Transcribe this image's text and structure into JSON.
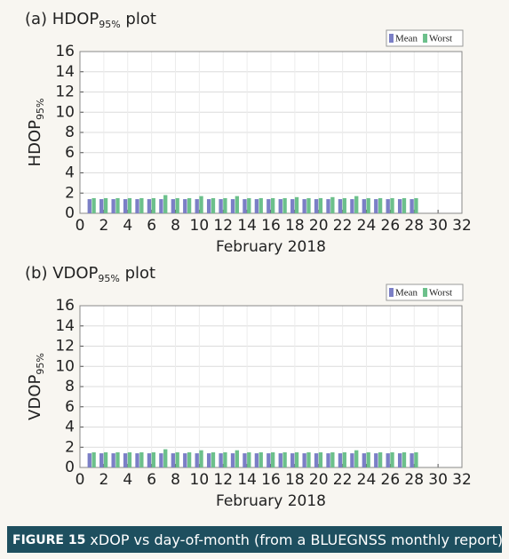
{
  "chart_data": [
    {
      "type": "bar",
      "title_main": "(a) HDOP",
      "title_sub": "95%",
      "title_end": " plot",
      "ylabel_main": "HDOP",
      "ylabel_sub": "95%",
      "xlabel": "February 2018",
      "x": [
        1,
        2,
        3,
        4,
        5,
        6,
        7,
        8,
        9,
        10,
        11,
        12,
        13,
        14,
        15,
        16,
        17,
        18,
        19,
        20,
        21,
        22,
        23,
        24,
        25,
        26,
        27,
        28
      ],
      "series": [
        {
          "name": "Mean",
          "color": "#7b7fc6",
          "values": [
            1.4,
            1.4,
            1.4,
            1.4,
            1.4,
            1.4,
            1.4,
            1.4,
            1.4,
            1.4,
            1.4,
            1.4,
            1.4,
            1.4,
            1.4,
            1.4,
            1.4,
            1.4,
            1.4,
            1.4,
            1.4,
            1.4,
            1.4,
            1.4,
            1.4,
            1.4,
            1.4,
            1.4
          ]
        },
        {
          "name": "Worst",
          "color": "#6cc08b",
          "values": [
            1.5,
            1.5,
            1.5,
            1.5,
            1.5,
            1.5,
            1.8,
            1.5,
            1.5,
            1.7,
            1.5,
            1.5,
            1.7,
            1.5,
            1.5,
            1.5,
            1.5,
            1.6,
            1.5,
            1.5,
            1.6,
            1.5,
            1.7,
            1.5,
            1.5,
            1.5,
            1.5,
            1.5
          ]
        }
      ],
      "xlim": [
        0,
        32
      ],
      "xticks": [
        0,
        2,
        4,
        6,
        8,
        10,
        12,
        14,
        16,
        18,
        20,
        22,
        24,
        26,
        28,
        30,
        32
      ],
      "ylim": [
        0,
        16
      ],
      "yticks": [
        0,
        2,
        4,
        6,
        8,
        10,
        12,
        14,
        16
      ],
      "grid": true,
      "legend": "top-right"
    },
    {
      "type": "bar",
      "title_main": "(b) VDOP",
      "title_sub": "95%",
      "title_end": " plot",
      "ylabel_main": "VDOP",
      "ylabel_sub": "95%",
      "xlabel": "February 2018",
      "x": [
        1,
        2,
        3,
        4,
        5,
        6,
        7,
        8,
        9,
        10,
        11,
        12,
        13,
        14,
        15,
        16,
        17,
        18,
        19,
        20,
        21,
        22,
        23,
        24,
        25,
        26,
        27,
        28
      ],
      "series": [
        {
          "name": "Mean",
          "color": "#7b7fc6",
          "values": [
            1.4,
            1.4,
            1.4,
            1.4,
            1.4,
            1.4,
            1.4,
            1.4,
            1.4,
            1.4,
            1.4,
            1.4,
            1.4,
            1.4,
            1.4,
            1.4,
            1.4,
            1.4,
            1.4,
            1.4,
            1.4,
            1.4,
            1.4,
            1.4,
            1.4,
            1.4,
            1.4,
            1.4
          ]
        },
        {
          "name": "Worst",
          "color": "#6cc08b",
          "values": [
            1.5,
            1.5,
            1.5,
            1.5,
            1.5,
            1.5,
            1.8,
            1.5,
            1.5,
            1.7,
            1.5,
            1.5,
            1.7,
            1.5,
            1.5,
            1.5,
            1.5,
            1.5,
            1.5,
            1.5,
            1.5,
            1.5,
            1.7,
            1.5,
            1.5,
            1.5,
            1.5,
            1.5
          ]
        }
      ],
      "xlim": [
        0,
        32
      ],
      "xticks": [
        0,
        2,
        4,
        6,
        8,
        10,
        12,
        14,
        16,
        18,
        20,
        22,
        24,
        26,
        28,
        30,
        32
      ],
      "ylim": [
        0,
        16
      ],
      "yticks": [
        0,
        2,
        4,
        6,
        8,
        10,
        12,
        14,
        16
      ],
      "grid": true,
      "legend": "top-right"
    }
  ],
  "caption": {
    "label": "FIGURE 15",
    "text": " xDOP vs day-of-month (from a BLUEGNSS monthly report)"
  }
}
